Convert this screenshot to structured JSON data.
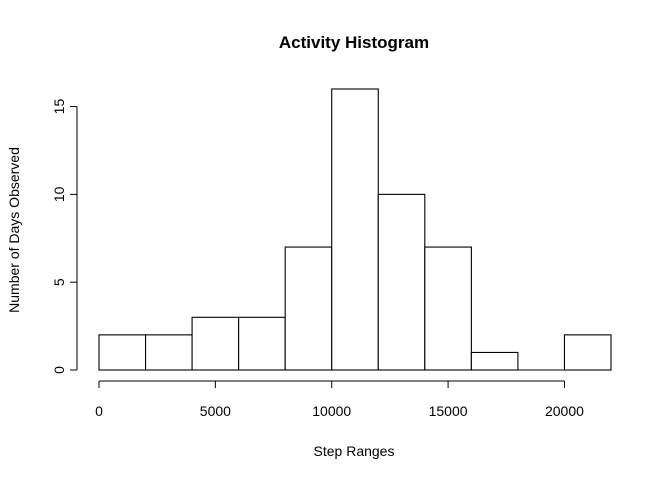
{
  "chart_data": {
    "type": "bar",
    "title": "Activity Histogram",
    "xlabel": "Step Ranges",
    "ylabel": "Number of Days Observed",
    "bins": [
      {
        "start": 0,
        "end": 2000,
        "count": 2
      },
      {
        "start": 2000,
        "end": 4000,
        "count": 2
      },
      {
        "start": 4000,
        "end": 6000,
        "count": 3
      },
      {
        "start": 6000,
        "end": 8000,
        "count": 3
      },
      {
        "start": 8000,
        "end": 10000,
        "count": 7
      },
      {
        "start": 10000,
        "end": 12000,
        "count": 16
      },
      {
        "start": 12000,
        "end": 14000,
        "count": 10
      },
      {
        "start": 14000,
        "end": 16000,
        "count": 7
      },
      {
        "start": 16000,
        "end": 18000,
        "count": 1
      },
      {
        "start": 18000,
        "end": 20000,
        "count": 0
      },
      {
        "start": 20000,
        "end": 22000,
        "count": 2
      }
    ],
    "xticks": [
      0,
      5000,
      10000,
      15000,
      20000
    ],
    "yticks": [
      0,
      5,
      10,
      15
    ],
    "xlim": [
      0,
      22000
    ],
    "ylim": [
      0,
      16
    ],
    "grid": false
  }
}
